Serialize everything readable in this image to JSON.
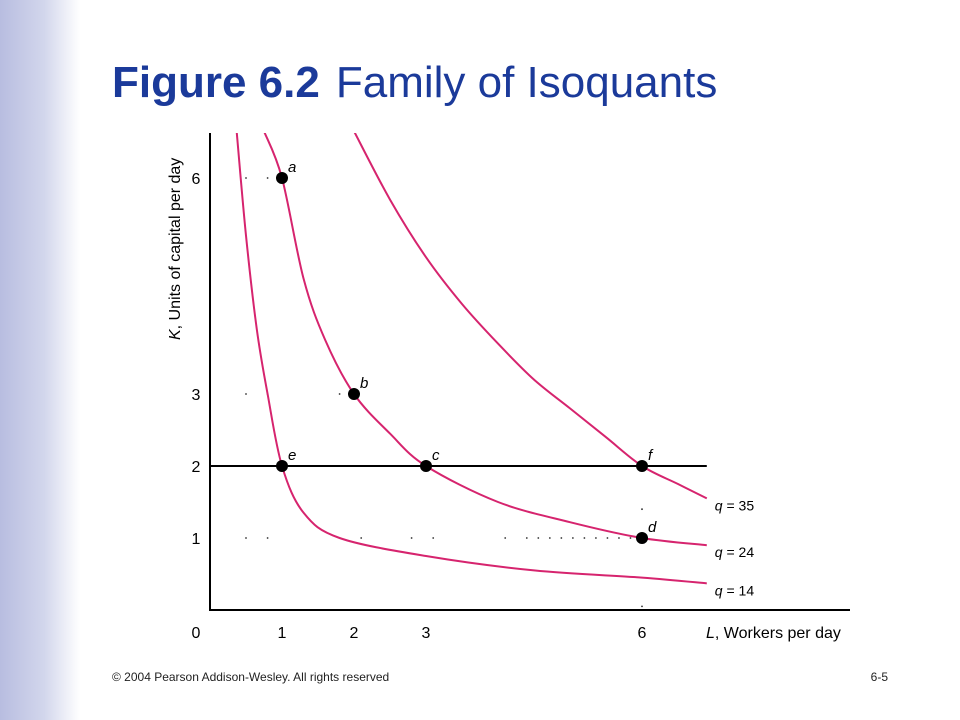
{
  "slide": {
    "title_figure": "Figure 6.2",
    "title_text": "Family of Isoquants",
    "copyright": "© 2004 Pearson Addison-Wesley. All rights reserved",
    "page": "6-5"
  },
  "colors": {
    "title": "#1b3a9a",
    "curve": "#d6246e",
    "axis": "#000000",
    "band": "#c5c9e6"
  },
  "chart_data": {
    "type": "line",
    "title": "Family of Isoquants",
    "xlabel_var": "L",
    "xlabel_rest": ", Workers per day",
    "ylabel_var": "K",
    "ylabel_rest": ", Units of capital per day",
    "x_ticks": [
      "0",
      "1",
      "2",
      "3",
      "6"
    ],
    "y_ticks": [
      "1",
      "2",
      "3",
      "6"
    ],
    "xlim": [
      0,
      9
    ],
    "ylim": [
      0,
      6.65
    ],
    "series": [
      {
        "name": "q = 14",
        "label_var": "q",
        "label_rest": " = 14",
        "points": [
          [
            0.37,
            6.65
          ],
          [
            0.5,
            5.2
          ],
          [
            0.65,
            3.9
          ],
          [
            0.8,
            3.0
          ],
          [
            1.0,
            2.0
          ],
          [
            1.3,
            1.35
          ],
          [
            1.8,
            1.0
          ],
          [
            3.0,
            0.75
          ],
          [
            4.5,
            0.55
          ],
          [
            6.0,
            0.45
          ],
          [
            6.9,
            0.37
          ]
        ]
      },
      {
        "name": "q = 24",
        "label_var": "q",
        "label_rest": " = 24",
        "points": [
          [
            0.75,
            6.65
          ],
          [
            1.0,
            6.0
          ],
          [
            1.3,
            4.6
          ],
          [
            1.6,
            3.75
          ],
          [
            2.0,
            3.0
          ],
          [
            2.5,
            2.45
          ],
          [
            3.0,
            2.0
          ],
          [
            4.0,
            1.5
          ],
          [
            5.0,
            1.22
          ],
          [
            6.0,
            1.0
          ],
          [
            6.9,
            0.9
          ]
        ]
      },
      {
        "name": "q = 35",
        "label_var": "q",
        "label_rest": " = 35",
        "points": [
          [
            2.0,
            6.65
          ],
          [
            2.5,
            5.7
          ],
          [
            3.0,
            4.9
          ],
          [
            3.5,
            4.25
          ],
          [
            4.0,
            3.7
          ],
          [
            4.5,
            3.2
          ],
          [
            5.0,
            2.8
          ],
          [
            5.5,
            2.4
          ],
          [
            6.0,
            2.0
          ],
          [
            6.5,
            1.75
          ],
          [
            6.9,
            1.55
          ]
        ]
      }
    ],
    "hline": {
      "y": 2,
      "x_from": 0,
      "x_to": 6.9
    },
    "points": [
      {
        "label": "a",
        "x": 1,
        "y": 6
      },
      {
        "label": "b",
        "x": 2,
        "y": 3
      },
      {
        "label": "c",
        "x": 3,
        "y": 2
      },
      {
        "label": "d",
        "x": 6,
        "y": 1
      },
      {
        "label": "e",
        "x": 1,
        "y": 2
      },
      {
        "label": "f",
        "x": 6,
        "y": 2
      }
    ],
    "grid": false,
    "legend": "curve labels at right end of each curve"
  }
}
